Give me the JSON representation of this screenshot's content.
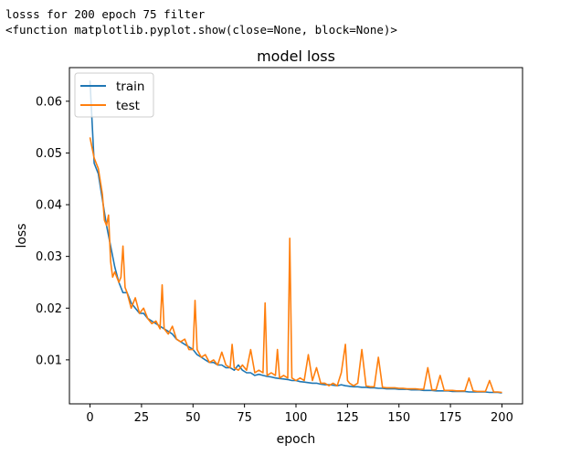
{
  "output": {
    "line1": "losss for 200 epoch 75 filter",
    "line2": "<function matplotlib.pyplot.show(close=None, block=None)>"
  },
  "chart_data": {
    "type": "line",
    "title": "model loss",
    "xlabel": "epoch",
    "ylabel": "loss",
    "xlim": [
      -10,
      210
    ],
    "ylim": [
      0.0015,
      0.0665
    ],
    "xticks": [
      0,
      25,
      50,
      75,
      100,
      125,
      150,
      175,
      200
    ],
    "yticks": [
      0.01,
      0.02,
      0.03,
      0.04,
      0.05,
      0.06
    ],
    "legend_position": "upper left",
    "grid": false,
    "series": [
      {
        "name": "train",
        "color": "#1f77b4",
        "points": [
          [
            0,
            0.064
          ],
          [
            2,
            0.048
          ],
          [
            4,
            0.046
          ],
          [
            6,
            0.041
          ],
          [
            8,
            0.036
          ],
          [
            10,
            0.032
          ],
          [
            12,
            0.028
          ],
          [
            14,
            0.025
          ],
          [
            16,
            0.023
          ],
          [
            18,
            0.023
          ],
          [
            20,
            0.021
          ],
          [
            22,
            0.02
          ],
          [
            24,
            0.019
          ],
          [
            26,
            0.019
          ],
          [
            28,
            0.018
          ],
          [
            30,
            0.0175
          ],
          [
            32,
            0.017
          ],
          [
            34,
            0.0165
          ],
          [
            36,
            0.016
          ],
          [
            38,
            0.0155
          ],
          [
            40,
            0.015
          ],
          [
            42,
            0.014
          ],
          [
            44,
            0.0135
          ],
          [
            46,
            0.013
          ],
          [
            48,
            0.0125
          ],
          [
            50,
            0.012
          ],
          [
            52,
            0.011
          ],
          [
            54,
            0.0105
          ],
          [
            56,
            0.01
          ],
          [
            58,
            0.0095
          ],
          [
            60,
            0.0095
          ],
          [
            62,
            0.009
          ],
          [
            64,
            0.009
          ],
          [
            66,
            0.0085
          ],
          [
            68,
            0.0085
          ],
          [
            70,
            0.008
          ],
          [
            72,
            0.009
          ],
          [
            74,
            0.008
          ],
          [
            76,
            0.0075
          ],
          [
            78,
            0.0075
          ],
          [
            80,
            0.007
          ],
          [
            82,
            0.0072
          ],
          [
            84,
            0.007
          ],
          [
            86,
            0.0068
          ],
          [
            88,
            0.0067
          ],
          [
            90,
            0.0065
          ],
          [
            92,
            0.0064
          ],
          [
            94,
            0.0063
          ],
          [
            96,
            0.0062
          ],
          [
            98,
            0.006
          ],
          [
            100,
            0.006
          ],
          [
            102,
            0.0058
          ],
          [
            104,
            0.0057
          ],
          [
            106,
            0.0056
          ],
          [
            108,
            0.0055
          ],
          [
            110,
            0.0055
          ],
          [
            112,
            0.0053
          ],
          [
            114,
            0.0052
          ],
          [
            116,
            0.0052
          ],
          [
            118,
            0.0051
          ],
          [
            120,
            0.005
          ],
          [
            122,
            0.0052
          ],
          [
            124,
            0.005
          ],
          [
            126,
            0.0049
          ],
          [
            128,
            0.0048
          ],
          [
            130,
            0.0048
          ],
          [
            132,
            0.0047
          ],
          [
            134,
            0.0047
          ],
          [
            136,
            0.0046
          ],
          [
            138,
            0.0046
          ],
          [
            140,
            0.0045
          ],
          [
            142,
            0.0045
          ],
          [
            144,
            0.0044
          ],
          [
            146,
            0.0044
          ],
          [
            148,
            0.0044
          ],
          [
            150,
            0.0043
          ],
          [
            152,
            0.0043
          ],
          [
            154,
            0.0043
          ],
          [
            156,
            0.0042
          ],
          [
            158,
            0.0042
          ],
          [
            160,
            0.0042
          ],
          [
            162,
            0.0041
          ],
          [
            164,
            0.0041
          ],
          [
            166,
            0.0041
          ],
          [
            168,
            0.004
          ],
          [
            170,
            0.004
          ],
          [
            172,
            0.004
          ],
          [
            174,
            0.004
          ],
          [
            176,
            0.0039
          ],
          [
            178,
            0.0039
          ],
          [
            180,
            0.0039
          ],
          [
            182,
            0.0039
          ],
          [
            184,
            0.0038
          ],
          [
            186,
            0.0038
          ],
          [
            188,
            0.0038
          ],
          [
            190,
            0.0038
          ],
          [
            192,
            0.0038
          ],
          [
            194,
            0.0037
          ],
          [
            196,
            0.0037
          ],
          [
            198,
            0.0037
          ],
          [
            200,
            0.0036
          ]
        ]
      },
      {
        "name": "test",
        "color": "#ff7f0e",
        "points": [
          [
            0,
            0.053
          ],
          [
            2,
            0.049
          ],
          [
            4,
            0.047
          ],
          [
            6,
            0.042
          ],
          [
            7,
            0.037
          ],
          [
            8,
            0.036
          ],
          [
            9,
            0.038
          ],
          [
            10,
            0.029
          ],
          [
            11,
            0.026
          ],
          [
            12,
            0.027
          ],
          [
            14,
            0.025
          ],
          [
            15,
            0.026
          ],
          [
            16,
            0.032
          ],
          [
            17,
            0.024
          ],
          [
            18,
            0.023
          ],
          [
            20,
            0.02
          ],
          [
            22,
            0.022
          ],
          [
            24,
            0.019
          ],
          [
            26,
            0.02
          ],
          [
            28,
            0.018
          ],
          [
            30,
            0.017
          ],
          [
            32,
            0.0175
          ],
          [
            34,
            0.016
          ],
          [
            35,
            0.0245
          ],
          [
            36,
            0.016
          ],
          [
            38,
            0.015
          ],
          [
            40,
            0.0165
          ],
          [
            42,
            0.014
          ],
          [
            44,
            0.0135
          ],
          [
            46,
            0.014
          ],
          [
            48,
            0.012
          ],
          [
            50,
            0.012
          ],
          [
            51,
            0.0215
          ],
          [
            52,
            0.012
          ],
          [
            54,
            0.0105
          ],
          [
            56,
            0.011
          ],
          [
            58,
            0.0095
          ],
          [
            60,
            0.01
          ],
          [
            62,
            0.009
          ],
          [
            64,
            0.0115
          ],
          [
            66,
            0.009
          ],
          [
            68,
            0.0085
          ],
          [
            69,
            0.013
          ],
          [
            70,
            0.0085
          ],
          [
            72,
            0.008
          ],
          [
            74,
            0.009
          ],
          [
            76,
            0.008
          ],
          [
            78,
            0.012
          ],
          [
            80,
            0.0075
          ],
          [
            82,
            0.008
          ],
          [
            84,
            0.0075
          ],
          [
            85,
            0.021
          ],
          [
            86,
            0.007
          ],
          [
            88,
            0.0075
          ],
          [
            90,
            0.007
          ],
          [
            91,
            0.012
          ],
          [
            92,
            0.0065
          ],
          [
            94,
            0.007
          ],
          [
            96,
            0.0065
          ],
          [
            97,
            0.0335
          ],
          [
            98,
            0.0065
          ],
          [
            100,
            0.006
          ],
          [
            102,
            0.0065
          ],
          [
            104,
            0.006
          ],
          [
            106,
            0.011
          ],
          [
            108,
            0.006
          ],
          [
            110,
            0.0085
          ],
          [
            112,
            0.0055
          ],
          [
            114,
            0.0055
          ],
          [
            116,
            0.005
          ],
          [
            118,
            0.0055
          ],
          [
            120,
            0.005
          ],
          [
            122,
            0.0075
          ],
          [
            124,
            0.013
          ],
          [
            125,
            0.006
          ],
          [
            126,
            0.0055
          ],
          [
            128,
            0.005
          ],
          [
            130,
            0.0055
          ],
          [
            132,
            0.012
          ],
          [
            134,
            0.005
          ],
          [
            136,
            0.0048
          ],
          [
            138,
            0.0048
          ],
          [
            140,
            0.0105
          ],
          [
            142,
            0.0047
          ],
          [
            144,
            0.0046
          ],
          [
            146,
            0.0046
          ],
          [
            148,
            0.0046
          ],
          [
            150,
            0.0045
          ],
          [
            152,
            0.0045
          ],
          [
            154,
            0.0044
          ],
          [
            156,
            0.0044
          ],
          [
            158,
            0.0044
          ],
          [
            160,
            0.0043
          ],
          [
            162,
            0.0043
          ],
          [
            164,
            0.0085
          ],
          [
            166,
            0.0042
          ],
          [
            168,
            0.0042
          ],
          [
            170,
            0.007
          ],
          [
            172,
            0.0041
          ],
          [
            174,
            0.0041
          ],
          [
            176,
            0.0041
          ],
          [
            178,
            0.004
          ],
          [
            180,
            0.004
          ],
          [
            182,
            0.004
          ],
          [
            184,
            0.0065
          ],
          [
            186,
            0.004
          ],
          [
            188,
            0.0039
          ],
          [
            190,
            0.0039
          ],
          [
            192,
            0.0039
          ],
          [
            194,
            0.006
          ],
          [
            196,
            0.0038
          ],
          [
            198,
            0.0038
          ],
          [
            200,
            0.0037
          ]
        ]
      }
    ]
  }
}
